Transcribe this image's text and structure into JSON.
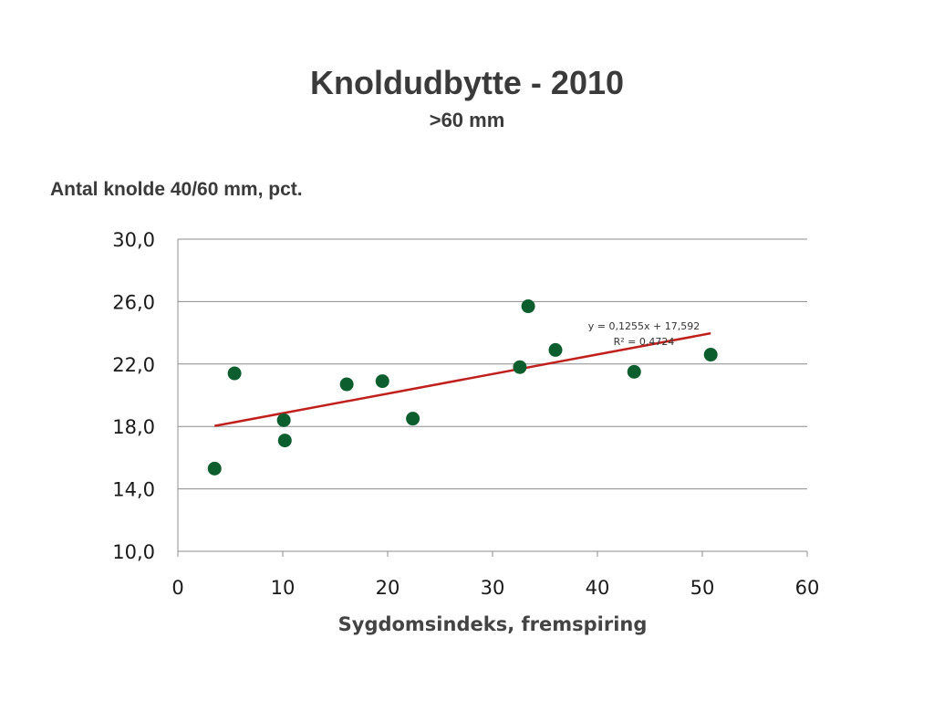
{
  "title": "Knoldudbytte - 2010",
  "subtitle": ">60 mm",
  "chart_data": {
    "type": "scatter",
    "ylabel": "Antal knolde 40/60 mm, pct.",
    "xlabel": "Sygdomsindeks, fremspiring",
    "xlim": [
      0,
      60
    ],
    "ylim": [
      10,
      30
    ],
    "xticks": [
      0,
      10,
      20,
      30,
      40,
      50,
      60
    ],
    "xtick_labels": [
      "0",
      "10",
      "20",
      "30",
      "40",
      "50",
      "60"
    ],
    "yticks": [
      10,
      14,
      18,
      22,
      26,
      30
    ],
    "ytick_labels": [
      "10,0",
      "14,0",
      "18,0",
      "22,0",
      "26,0",
      "30,0"
    ],
    "grid": "horizontal",
    "points": [
      {
        "x": 3.5,
        "y": 15.3
      },
      {
        "x": 5.4,
        "y": 21.4
      },
      {
        "x": 10.1,
        "y": 18.4
      },
      {
        "x": 10.2,
        "y": 17.1
      },
      {
        "x": 16.1,
        "y": 20.7
      },
      {
        "x": 19.5,
        "y": 20.9
      },
      {
        "x": 22.4,
        "y": 18.5
      },
      {
        "x": 32.6,
        "y": 21.8
      },
      {
        "x": 33.4,
        "y": 25.7
      },
      {
        "x": 36.0,
        "y": 22.9
      },
      {
        "x": 43.5,
        "y": 21.5
      },
      {
        "x": 50.8,
        "y": 22.6
      }
    ],
    "trendline": {
      "slope": 0.1255,
      "intercept": 17.592,
      "x_range": [
        3.5,
        50.8
      ],
      "equation": "y = 0,1255x + 17,592",
      "r2_label": "R² = 0,4724"
    },
    "colors": {
      "points": "#0d5e2e",
      "trendline": "#c0201c",
      "grid": "#8c8c8c",
      "axis": "#8c8c8c"
    }
  }
}
